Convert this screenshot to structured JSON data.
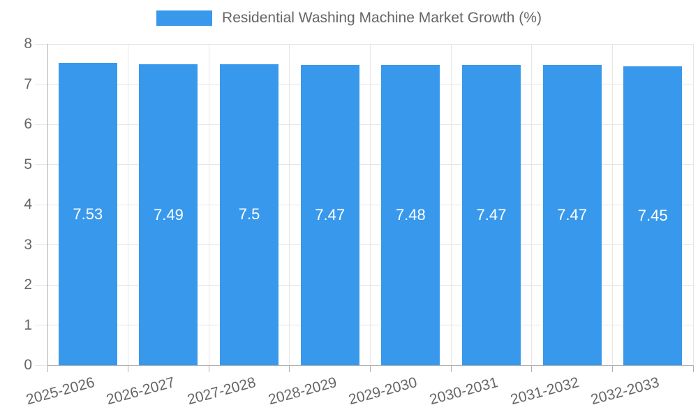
{
  "chart_data": {
    "type": "bar",
    "title": "Residential Washing Machine Market Growth (%)",
    "categories": [
      "2025-2026",
      "2026-2027",
      "2027-2028",
      "2028-2029",
      "2029-2030",
      "2030-2031",
      "2031-2032",
      "2032-2033"
    ],
    "values": [
      7.53,
      7.49,
      7.5,
      7.47,
      7.48,
      7.47,
      7.47,
      7.45
    ],
    "value_labels": [
      "7.53",
      "7.49",
      "7.5",
      "7.47",
      "7.48",
      "7.47",
      "7.47",
      "7.45"
    ],
    "xlabel": "",
    "ylabel": "",
    "ylim": [
      0,
      8
    ],
    "yticks": [
      "0",
      "1",
      "2",
      "3",
      "4",
      "5",
      "6",
      "7",
      "8"
    ],
    "grid": true,
    "legend_position": "top",
    "colors": {
      "bar": "#3899ec",
      "tick_text": "#666666",
      "grid_line": "#e6e6e6",
      "axis_line": "#b0b0b0",
      "value_text": "#ffffff"
    }
  }
}
